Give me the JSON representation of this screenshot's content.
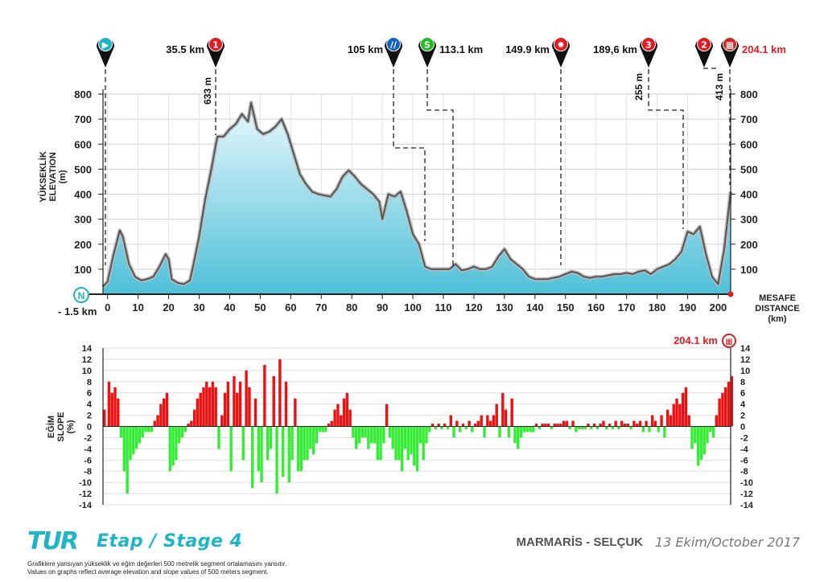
{
  "chart_data": [
    {
      "type": "area",
      "yaxis_label_lines": [
        "YÜKSEKLİK",
        "ELEVATION",
        "(m)"
      ],
      "xaxis_label_lines": [
        "MESAFE",
        "DISTANCE",
        "(km)"
      ],
      "xlim": [
        -1.5,
        204.1
      ],
      "ylim": [
        0,
        800
      ],
      "x_ticks": [
        0,
        10,
        20,
        30,
        40,
        50,
        60,
        70,
        80,
        90,
        100,
        110,
        120,
        130,
        140,
        150,
        160,
        170,
        180,
        190,
        200
      ],
      "y_ticks": [
        100,
        200,
        300,
        400,
        500,
        600,
        700,
        800
      ],
      "start_label": "- 1.5 km",
      "start_badge": "N",
      "x": [
        -1.5,
        0,
        2,
        4,
        5,
        7,
        9,
        11,
        13,
        15,
        17,
        19,
        20,
        21,
        23,
        25,
        27,
        28,
        30,
        32,
        34,
        35.5,
        36,
        38,
        40,
        42,
        44,
        46,
        47,
        49,
        51,
        53,
        55,
        57,
        59,
        61,
        63,
        65,
        67,
        69,
        71,
        73,
        75,
        77,
        79,
        81,
        83,
        85,
        87,
        89,
        90,
        92,
        94,
        96,
        98,
        100,
        102,
        104,
        106,
        108,
        110,
        112,
        114,
        116,
        118,
        120,
        122,
        124,
        126,
        128,
        130,
        132,
        134,
        136,
        138,
        140,
        142,
        144,
        146,
        148,
        150,
        152,
        154,
        156,
        158,
        160,
        162,
        164,
        166,
        168,
        170,
        172,
        174,
        176,
        178,
        180,
        182,
        184,
        186,
        188,
        190,
        192,
        194,
        196,
        198,
        200,
        202,
        204.1
      ],
      "elevation": [
        30,
        50,
        160,
        255,
        230,
        120,
        70,
        55,
        60,
        70,
        110,
        160,
        140,
        60,
        45,
        40,
        55,
        110,
        230,
        380,
        500,
        600,
        630,
        630,
        660,
        680,
        720,
        690,
        765,
        660,
        640,
        650,
        670,
        700,
        640,
        560,
        480,
        440,
        410,
        400,
        395,
        390,
        420,
        470,
        495,
        470,
        440,
        420,
        400,
        370,
        300,
        400,
        390,
        410,
        330,
        240,
        200,
        110,
        100,
        100,
        100,
        100,
        120,
        95,
        100,
        110,
        100,
        100,
        110,
        150,
        180,
        140,
        120,
        100,
        70,
        60,
        60,
        60,
        65,
        70,
        80,
        90,
        85,
        70,
        65,
        70,
        70,
        75,
        80,
        80,
        85,
        80,
        90,
        95,
        80,
        100,
        110,
        120,
        140,
        170,
        250,
        240,
        270,
        160,
        70,
        40,
        180,
        410
      ],
      "markers": [
        {
          "icon": "start-icon",
          "color": "#1fb5c6",
          "symbol": "▶",
          "km": 0,
          "label": "",
          "drop": ""
        },
        {
          "icon": "climb-1-icon",
          "color": "#e31b23",
          "symbol": "1",
          "km": 35.5,
          "label": "35.5 km",
          "drop": "633 m"
        },
        {
          "icon": "feed-zone-icon",
          "color": "#1565c0",
          "symbol": "//",
          "km": 105,
          "label": "105 km",
          "drop": ""
        },
        {
          "icon": "sprint-icon",
          "color": "#22bb22",
          "symbol": "S",
          "km": 113.1,
          "label": "113.1 km",
          "drop": ""
        },
        {
          "icon": "bonus-sprint-icon",
          "color": "#e31b23",
          "symbol": "✹",
          "km": 149.9,
          "label": "149.9 km",
          "drop": ""
        },
        {
          "icon": "climb-3-icon",
          "color": "#e31b23",
          "symbol": "3",
          "km": 189.6,
          "label": "189,6 km",
          "drop": "255 m"
        },
        {
          "icon": "climb-2-icon",
          "color": "#e31b23",
          "symbol": "2",
          "km": 198,
          "label": "",
          "drop": ""
        },
        {
          "icon": "finish-icon",
          "color": "#c62828",
          "symbol": "▦",
          "km": 204.1,
          "label": "204.1 km",
          "drop": "413 m"
        }
      ]
    },
    {
      "type": "bar",
      "yaxis_label_lines": [
        "EĞİM",
        "SLOPE",
        "(%)"
      ],
      "ylim": [
        -14,
        14
      ],
      "y_ticks": [
        -14,
        -12,
        -10,
        -8,
        -6,
        -4,
        -2,
        0,
        2,
        4,
        6,
        8,
        10,
        12,
        14
      ],
      "finish_label": "204.1 km",
      "segment_km": 0.5,
      "slope_samples": [
        [
          -1.5,
          3
        ],
        [
          0,
          8
        ],
        [
          1,
          6
        ],
        [
          2,
          7
        ],
        [
          3,
          5
        ],
        [
          4,
          -2
        ],
        [
          5,
          -8
        ],
        [
          6,
          -12
        ],
        [
          7,
          -6
        ],
        [
          8,
          -5
        ],
        [
          9,
          -4
        ],
        [
          10,
          -3
        ],
        [
          11,
          -2
        ],
        [
          12,
          -1
        ],
        [
          13,
          -1
        ],
        [
          14,
          -1
        ],
        [
          15,
          1
        ],
        [
          16,
          2
        ],
        [
          17,
          4
        ],
        [
          18,
          5
        ],
        [
          19,
          6
        ],
        [
          20,
          -8
        ],
        [
          21,
          -7
        ],
        [
          22,
          -6
        ],
        [
          23,
          -3
        ],
        [
          24,
          -2
        ],
        [
          25,
          -1
        ],
        [
          26,
          0.5
        ],
        [
          27,
          1
        ],
        [
          28,
          3
        ],
        [
          29,
          5
        ],
        [
          30,
          6
        ],
        [
          31,
          7
        ],
        [
          32,
          8
        ],
        [
          33,
          7
        ],
        [
          34,
          8
        ],
        [
          35,
          7
        ],
        [
          36,
          -4
        ],
        [
          37,
          2
        ],
        [
          38,
          6
        ],
        [
          39,
          8
        ],
        [
          40,
          -8
        ],
        [
          41,
          9
        ],
        [
          42,
          6
        ],
        [
          43,
          8
        ],
        [
          44,
          -6
        ],
        [
          45,
          10
        ],
        [
          46,
          7
        ],
        [
          47,
          -11
        ],
        [
          48,
          5
        ],
        [
          49,
          -8
        ],
        [
          50,
          -10
        ],
        [
          51,
          11
        ],
        [
          52,
          -6
        ],
        [
          53,
          -4
        ],
        [
          54,
          9
        ],
        [
          55,
          -12
        ],
        [
          56,
          12
        ],
        [
          57,
          -9
        ],
        [
          58,
          8
        ],
        [
          59,
          -10
        ],
        [
          60,
          -6
        ],
        [
          61,
          5
        ],
        [
          62,
          -8
        ],
        [
          63,
          -8
        ],
        [
          64,
          -6
        ],
        [
          65,
          -6
        ],
        [
          66,
          -4
        ],
        [
          67,
          -5
        ],
        [
          68,
          -3
        ],
        [
          69,
          -1
        ],
        [
          70,
          -1
        ],
        [
          71,
          -1
        ],
        [
          72,
          0.5
        ],
        [
          73,
          1
        ],
        [
          74,
          3
        ],
        [
          75,
          4
        ],
        [
          76,
          2
        ],
        [
          77,
          5
        ],
        [
          78,
          6
        ],
        [
          79,
          3
        ],
        [
          80,
          -2
        ],
        [
          81,
          -4
        ],
        [
          82,
          -3
        ],
        [
          83,
          -2
        ],
        [
          84,
          -2
        ],
        [
          85,
          -4
        ],
        [
          86,
          -3
        ],
        [
          87,
          -3
        ],
        [
          88,
          -6
        ],
        [
          89,
          -6
        ],
        [
          90,
          -3
        ],
        [
          91,
          4
        ],
        [
          92,
          -2
        ],
        [
          93,
          -4
        ],
        [
          94,
          -6
        ],
        [
          95,
          -6
        ],
        [
          96,
          -8
        ],
        [
          97,
          -4
        ],
        [
          98,
          -6
        ],
        [
          99,
          -5
        ],
        [
          100,
          -7
        ],
        [
          101,
          -8
        ],
        [
          102,
          -3
        ],
        [
          103,
          -6
        ],
        [
          104,
          -3
        ],
        [
          105,
          -1
        ],
        [
          106,
          0.5
        ],
        [
          107,
          -0.5
        ],
        [
          108,
          0.5
        ],
        [
          109,
          -0.5
        ],
        [
          110,
          0.5
        ],
        [
          111,
          -0.5
        ],
        [
          112,
          2
        ],
        [
          113,
          -2
        ],
        [
          114,
          1
        ],
        [
          115,
          -1
        ],
        [
          116,
          0.5
        ],
        [
          117,
          -0.5
        ],
        [
          118,
          1
        ],
        [
          119,
          -1
        ],
        [
          120,
          0.5
        ],
        [
          121,
          1
        ],
        [
          122,
          2
        ],
        [
          123,
          -2
        ],
        [
          124,
          2
        ],
        [
          125,
          1
        ],
        [
          126,
          2
        ],
        [
          127,
          4
        ],
        [
          128,
          -2
        ],
        [
          129,
          6
        ],
        [
          130,
          3
        ],
        [
          131,
          -2
        ],
        [
          132,
          5
        ],
        [
          133,
          -3
        ],
        [
          134,
          -4
        ],
        [
          135,
          -2
        ],
        [
          136,
          -1
        ],
        [
          137,
          -1
        ],
        [
          138,
          -1
        ],
        [
          139,
          -1
        ],
        [
          140,
          0.5
        ],
        [
          141,
          -0.5
        ],
        [
          142,
          0.5
        ],
        [
          143,
          0.5
        ],
        [
          144,
          0.5
        ],
        [
          145,
          -0.5
        ],
        [
          146,
          0.5
        ],
        [
          147,
          0.5
        ],
        [
          148,
          0.5
        ],
        [
          149,
          1
        ],
        [
          150,
          1
        ],
        [
          151,
          -0.5
        ],
        [
          152,
          1
        ],
        [
          153,
          -1
        ],
        [
          154,
          -0.5
        ],
        [
          155,
          -0.5
        ],
        [
          156,
          -0.5
        ],
        [
          157,
          0.5
        ],
        [
          158,
          -0.5
        ],
        [
          159,
          0.5
        ],
        [
          160,
          -0.5
        ],
        [
          161,
          0.5
        ],
        [
          162,
          1
        ],
        [
          163,
          -0.5
        ],
        [
          164,
          0.5
        ],
        [
          165,
          -0.5
        ],
        [
          166,
          1
        ],
        [
          167,
          -0.5
        ],
        [
          168,
          1
        ],
        [
          169,
          0.5
        ],
        [
          170,
          0.5
        ],
        [
          171,
          -0.5
        ],
        [
          172,
          1
        ],
        [
          173,
          0.5
        ],
        [
          174,
          1
        ],
        [
          175,
          -1
        ],
        [
          176,
          1
        ],
        [
          177,
          -1
        ],
        [
          178,
          2
        ],
        [
          179,
          1
        ],
        [
          180,
          -1
        ],
        [
          181,
          2
        ],
        [
          182,
          -2
        ],
        [
          183,
          3
        ],
        [
          184,
          2
        ],
        [
          185,
          4
        ],
        [
          186,
          5
        ],
        [
          187,
          4
        ],
        [
          188,
          6
        ],
        [
          189,
          7
        ],
        [
          190,
          2
        ],
        [
          191,
          -4
        ],
        [
          192,
          -3
        ],
        [
          193,
          -7
        ],
        [
          194,
          -6
        ],
        [
          195,
          -5
        ],
        [
          196,
          -3
        ],
        [
          197,
          -1
        ],
        [
          198,
          -2
        ],
        [
          199,
          2
        ],
        [
          200,
          5
        ],
        [
          201,
          6
        ],
        [
          202,
          7
        ],
        [
          203,
          8
        ],
        [
          204,
          9
        ]
      ]
    }
  ],
  "footer": {
    "logo": "TUR",
    "stage": "Etap / Stage 4",
    "route": "MARMARİS - SELÇUK",
    "date": "13 Ekim/October 2017",
    "note_tr": "Grafiklere yansıyan yükseklik ve eğim değerleri 500 metrelik segment ortalamasını yansıtır.",
    "note_en": "Values on graphs reflect average elevation and slope values of 500 meters segment."
  },
  "colors": {
    "area_top": "#e8f8fd",
    "area_bottom": "#4fc0d8",
    "profile_line": "#555555",
    "slope_up": "#ee1111",
    "slope_down": "#33ee33",
    "accent": "#1fb5c6",
    "finish_red": "#e31b23"
  }
}
